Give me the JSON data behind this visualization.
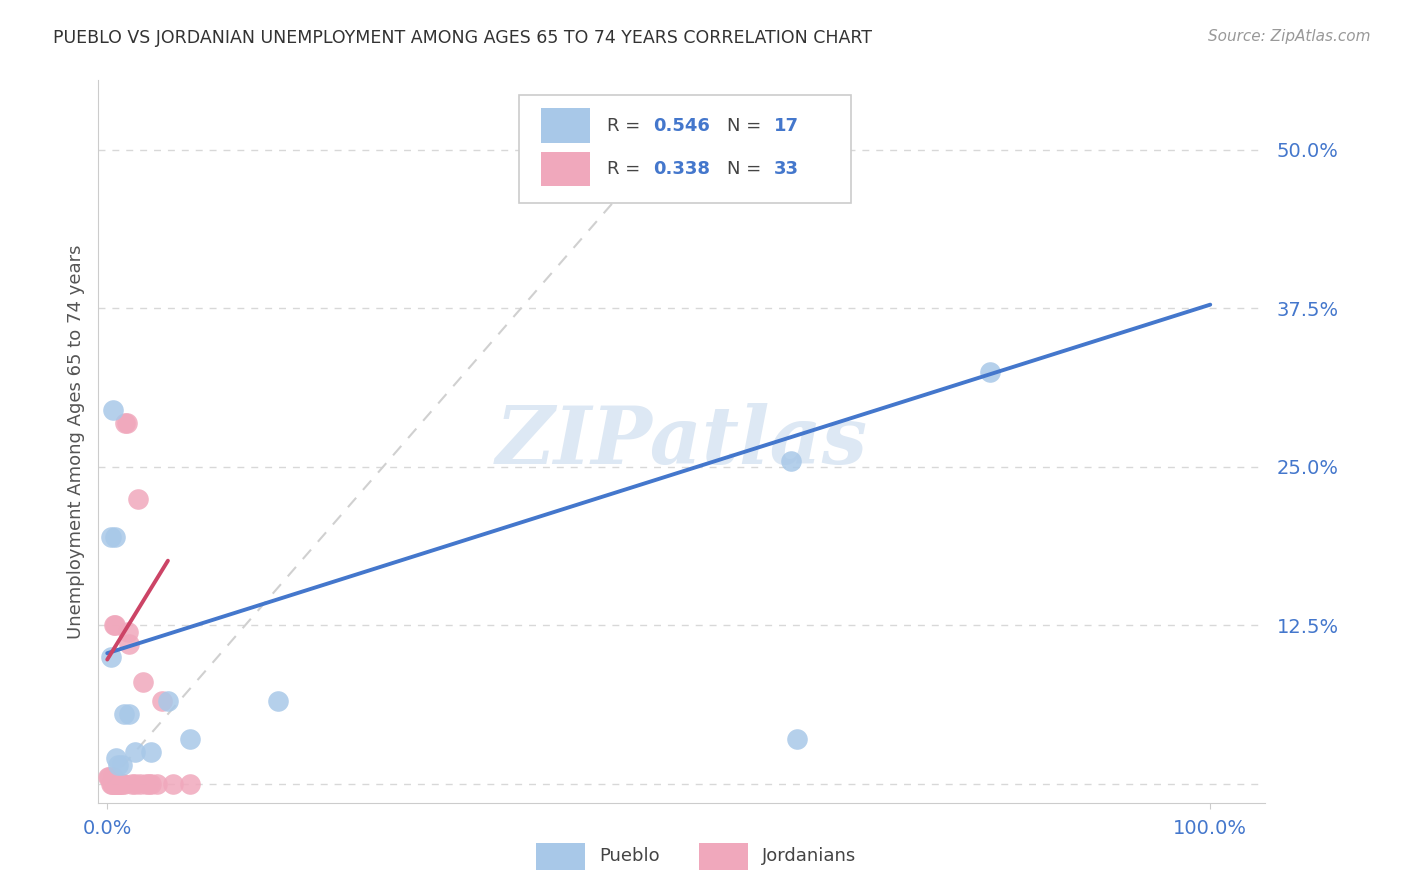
{
  "title": "PUEBLO VS JORDANIAN UNEMPLOYMENT AMONG AGES 65 TO 74 YEARS CORRELATION CHART",
  "source": "Source: ZipAtlas.com",
  "ylabel": "Unemployment Among Ages 65 to 74 years",
  "xlim": [
    -0.008,
    1.05
  ],
  "ylim": [
    -0.015,
    0.555
  ],
  "ytick_positions": [
    0.0,
    0.125,
    0.25,
    0.375,
    0.5
  ],
  "yticklabels": [
    "",
    "12.5%",
    "25.0%",
    "37.5%",
    "50.0%"
  ],
  "xtick_positions": [
    0.0,
    1.0
  ],
  "xticklabels": [
    "0.0%",
    "100.0%"
  ],
  "pueblo_color": "#a8c8e8",
  "jordanian_color": "#f0a8bc",
  "pueblo_line_color": "#4477cc",
  "jordanian_line_color": "#cc4466",
  "diagonal_color": "#d0d0d0",
  "watermark_color": "#dde8f4",
  "legend_r_color": "#4477cc",
  "background_color": "#ffffff",
  "grid_color": "#d8d8d8",
  "pueblo_x": [
    0.003,
    0.003,
    0.005,
    0.007,
    0.008,
    0.01,
    0.013,
    0.015,
    0.02,
    0.025,
    0.04,
    0.055,
    0.075,
    0.155,
    0.62,
    0.625,
    0.8
  ],
  "pueblo_y": [
    0.1,
    0.195,
    0.295,
    0.195,
    0.02,
    0.015,
    0.015,
    0.055,
    0.055,
    0.025,
    0.025,
    0.065,
    0.035,
    0.065,
    0.255,
    0.035,
    0.325
  ],
  "jordanian_x": [
    0.001,
    0.002,
    0.003,
    0.004,
    0.005,
    0.005,
    0.006,
    0.007,
    0.008,
    0.008,
    0.009,
    0.01,
    0.01,
    0.011,
    0.012,
    0.013,
    0.015,
    0.016,
    0.018,
    0.019,
    0.02,
    0.022,
    0.025,
    0.028,
    0.03,
    0.032,
    0.035,
    0.038,
    0.04,
    0.045,
    0.05,
    0.06,
    0.075
  ],
  "jordanian_y": [
    0.005,
    0.005,
    0.0,
    0.0,
    0.005,
    0.0,
    0.125,
    0.125,
    0.0,
    0.0,
    0.0,
    0.0,
    0.0,
    0.0,
    0.0,
    0.0,
    0.0,
    0.285,
    0.285,
    0.12,
    0.11,
    0.0,
    0.0,
    0.225,
    0.0,
    0.08,
    0.0,
    0.0,
    0.0,
    0.0,
    0.065,
    0.0,
    0.0
  ],
  "pueblo_line_x0": 0.0,
  "pueblo_line_x1": 1.0,
  "pueblo_line_y0": 0.103,
  "pueblo_line_y1": 0.378,
  "jordanian_line_x0": 0.0,
  "jordanian_line_x1": 0.055,
  "jordanian_line_y0": 0.098,
  "jordanian_line_y1": 0.176
}
